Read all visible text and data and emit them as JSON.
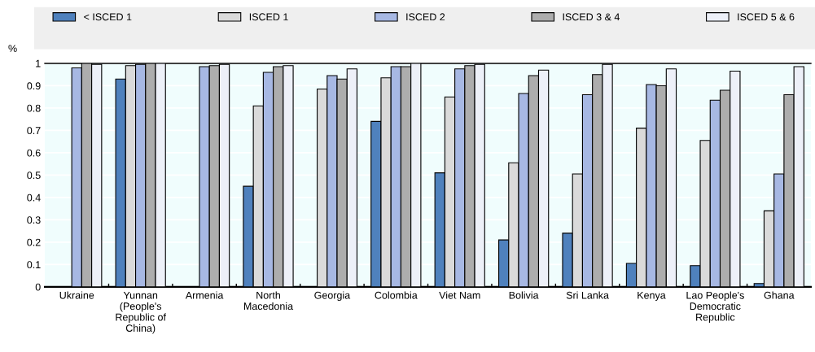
{
  "chart_data": {
    "type": "bar",
    "ylabel": "%",
    "categories": [
      "Ukraine",
      "Yunnan\n(People's\nRepublic of\nChina)",
      "Armenia",
      "North\nMacedonia",
      "Georgia",
      "Colombia",
      "Viet Nam",
      "Bolivia",
      "Sri Lanka",
      "Kenya",
      "Lao People's\nDemocratic\nRepublic",
      "Ghana"
    ],
    "series": [
      {
        "name": "< ISCED 1",
        "color": "#4f81bd",
        "values": [
          null,
          0.93,
          null,
          0.45,
          null,
          0.74,
          0.51,
          0.21,
          0.24,
          0.105,
          0.095,
          0.015
        ]
      },
      {
        "name": "ISCED 1",
        "color": "#dadada",
        "values": [
          null,
          0.99,
          null,
          0.81,
          0.885,
          0.935,
          0.85,
          0.555,
          0.505,
          0.71,
          0.655,
          0.34
        ]
      },
      {
        "name": "ISCED 2",
        "color": "#a7b8e3",
        "values": [
          0.98,
          0.995,
          0.985,
          0.96,
          0.945,
          0.985,
          0.975,
          0.865,
          0.86,
          0.905,
          0.835,
          0.505
        ]
      },
      {
        "name": "ISCED 3 & 4",
        "color": "#adadad",
        "values": [
          1.0,
          1.0,
          0.99,
          0.985,
          0.93,
          0.985,
          0.99,
          0.945,
          0.95,
          0.9,
          0.88,
          0.86
        ]
      },
      {
        "name": "ISCED 5 & 6",
        "color": "#edf0f8",
        "values": [
          0.995,
          1.0,
          0.995,
          0.99,
          0.975,
          1.0,
          0.995,
          0.97,
          0.995,
          0.975,
          0.965,
          0.985
        ]
      }
    ],
    "ylim": [
      0,
      1
    ],
    "yticks": [
      0,
      0.1,
      0.2,
      0.3,
      0.4,
      0.5,
      0.6,
      0.7,
      0.8,
      0.9,
      1
    ],
    "grid": "y",
    "legend": "top"
  }
}
